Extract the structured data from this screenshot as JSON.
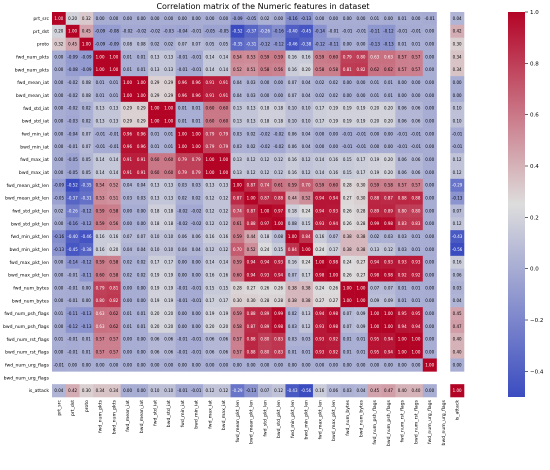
{
  "chart_data": {
    "type": "heatmap",
    "title": "Correlation matrix of the Numeric features in dataset",
    "labels": [
      "prt_src",
      "prt_dst",
      "proto",
      "fwd_num_pkts",
      "bwd_num_pkts",
      "fwd_mean_iat",
      "bwd_mean_iat",
      "fwd_std_iat",
      "bwd_std_iat",
      "fwd_min_iat",
      "bwd_min_iat",
      "fwd_max_iat",
      "bwd_max_iat",
      "fwd_mean_pkt_len",
      "bwd_mean_pkt_len",
      "fwd_std_pkt_len",
      "bwd_std_pkt_len",
      "fwd_min_pkt_len",
      "bwd_min_pkt_len",
      "fwd_max_pkt_len",
      "bwd_max_pkt_len",
      "fwd_num_bytes",
      "bwd_num_bytes",
      "fwd_num_psh_flags",
      "bwd_num_psh_flags",
      "fwd_num_rst_flags",
      "bwd_num_rst_flags",
      "fwd_num_urg_flags",
      "bwd_num_urg_flags",
      "is_attack"
    ],
    "matrix": [
      [
        1.0,
        0.2,
        0.32,
        0.0,
        0.0,
        -0.0,
        -0.0,
        -0.0,
        -0.0,
        -0.0,
        -0.0,
        -0.0,
        -0.0,
        -0.09,
        -0.05,
        0.02,
        0.0,
        -0.16,
        -0.13,
        -0.0,
        -0.0,
        0.0,
        0.0,
        0.01,
        0.0,
        0.01,
        0.0,
        -0.01,
        -0.01,
        0.04
      ],
      [
        0.2,
        1.0,
        0.45,
        -0.09,
        -0.08,
        -0.02,
        -0.02,
        -0.02,
        -0.03,
        -0.04,
        -0.01,
        -0.05,
        -0.05,
        -0.52,
        -0.37,
        -0.26,
        -0.16,
        -0.4,
        -0.45,
        -0.14,
        -0.01,
        -0.01,
        -0.01,
        -0.11,
        -0.12,
        -0.01,
        -0.01,
        0.0,
        0.0,
        0.42
      ],
      [
        0.32,
        0.45,
        1.0,
        -0.09,
        -0.09,
        0.08,
        0.08,
        0.02,
        0.02,
        0.07,
        0.07,
        0.05,
        0.05,
        -0.35,
        -0.31,
        -0.12,
        -0.12,
        -0.46,
        -0.38,
        -0.12,
        -0.11,
        -0.0,
        0.0,
        -0.13,
        -0.13,
        0.01,
        0.01,
        -0.0,
        -0.0,
        0.3
      ],
      [
        0.0,
        -0.09,
        -0.09,
        1.0,
        1.0,
        0.01,
        0.01,
        0.13,
        0.13,
        -0.01,
        -0.01,
        0.14,
        0.14,
        0.54,
        0.53,
        0.59,
        0.59,
        0.16,
        0.16,
        0.59,
        0.6,
        0.79,
        0.8,
        0.63,
        0.63,
        0.57,
        0.57,
        0.0,
        0.0,
        0.34
      ],
      [
        0.0,
        -0.08,
        -0.09,
        1.0,
        1.0,
        0.01,
        0.01,
        0.13,
        0.13,
        -0.01,
        -0.01,
        0.14,
        0.14,
        0.52,
        0.51,
        0.58,
        0.56,
        0.16,
        0.2,
        0.58,
        0.58,
        0.81,
        0.82,
        0.62,
        0.62,
        0.57,
        0.57,
        0.0,
        0.0,
        0.34
      ],
      [
        -0.0,
        -0.02,
        0.08,
        0.01,
        0.01,
        1.0,
        1.0,
        0.29,
        0.29,
        0.96,
        0.96,
        0.91,
        0.91,
        0.04,
        0.03,
        -0.0,
        -0.0,
        0.07,
        0.04,
        0.02,
        0.02,
        0.0,
        0.0,
        0.01,
        0.01,
        -0.0,
        -0.0,
        -0.0,
        -0.0,
        -0.0
      ],
      [
        -0.0,
        -0.02,
        0.08,
        0.01,
        0.01,
        1.0,
        1.0,
        0.29,
        0.29,
        0.96,
        0.96,
        0.91,
        0.91,
        0.04,
        0.03,
        -0.0,
        -0.0,
        0.07,
        0.04,
        0.02,
        0.02,
        0.0,
        0.0,
        0.01,
        0.01,
        -0.0,
        -0.0,
        -0.0,
        -0.0,
        -0.0
      ],
      [
        -0.0,
        -0.02,
        0.02,
        0.13,
        0.13,
        0.29,
        0.29,
        1.0,
        1.0,
        0.01,
        0.01,
        0.6,
        0.6,
        0.13,
        0.13,
        0.18,
        0.18,
        0.1,
        0.1,
        0.17,
        0.19,
        0.19,
        0.19,
        0.2,
        0.2,
        0.06,
        0.06,
        -0.0,
        -0.0,
        0.1
      ],
      [
        -0.0,
        -0.03,
        0.02,
        0.13,
        0.13,
        0.29,
        0.29,
        1.0,
        1.0,
        0.01,
        0.01,
        0.6,
        0.6,
        0.13,
        0.13,
        0.18,
        0.18,
        0.1,
        0.1,
        0.17,
        0.19,
        0.19,
        0.19,
        0.2,
        0.2,
        0.06,
        0.06,
        -0.0,
        -0.0,
        0.1
      ],
      [
        -0.0,
        -0.04,
        0.07,
        -0.01,
        -0.01,
        0.96,
        0.96,
        0.01,
        0.01,
        1.0,
        1.0,
        0.79,
        0.79,
        0.03,
        0.02,
        -0.02,
        -0.02,
        0.06,
        0.04,
        0.0,
        -0.0,
        -0.01,
        -0.01,
        -0.0,
        -0.0,
        -0.01,
        -0.01,
        -0.0,
        -0.0,
        -0.01
      ],
      [
        -0.0,
        -0.01,
        0.07,
        -0.01,
        -0.01,
        0.96,
        0.96,
        0.01,
        0.01,
        1.0,
        1.0,
        0.79,
        0.79,
        0.03,
        0.02,
        -0.02,
        -0.02,
        0.06,
        0.04,
        0.0,
        -0.0,
        -0.01,
        -0.01,
        -0.0,
        -0.0,
        -0.01,
        -0.01,
        -0.0,
        -0.0,
        -0.01
      ],
      [
        -0.0,
        -0.05,
        0.05,
        0.14,
        0.14,
        0.91,
        0.91,
        0.6,
        0.6,
        0.79,
        0.79,
        1.0,
        1.0,
        0.13,
        0.12,
        0.12,
        0.12,
        0.16,
        0.12,
        0.14,
        0.16,
        0.15,
        0.17,
        0.19,
        0.2,
        0.06,
        0.06,
        -0.0,
        -0.0,
        0.12
      ],
      [
        -0.0,
        -0.05,
        0.05,
        0.14,
        0.14,
        0.91,
        0.91,
        0.6,
        0.6,
        0.79,
        0.79,
        1.0,
        1.0,
        0.13,
        0.12,
        0.12,
        0.12,
        0.16,
        0.12,
        0.14,
        0.16,
        0.15,
        0.17,
        0.19,
        0.2,
        0.06,
        0.06,
        -0.0,
        -0.0,
        0.12
      ],
      [
        -0.09,
        -0.52,
        -0.35,
        0.54,
        0.52,
        0.04,
        0.04,
        0.13,
        0.13,
        0.03,
        0.03,
        0.13,
        0.13,
        1.0,
        0.87,
        0.74,
        0.61,
        0.59,
        0.7,
        0.59,
        0.6,
        0.28,
        0.3,
        0.59,
        0.58,
        0.57,
        0.57,
        0.0,
        0.0,
        -0.29
      ],
      [
        -0.05,
        -0.37,
        -0.31,
        0.53,
        0.51,
        0.03,
        0.03,
        0.13,
        0.13,
        0.02,
        0.02,
        0.12,
        0.12,
        0.87,
        1.0,
        0.87,
        0.88,
        0.44,
        0.52,
        0.94,
        0.94,
        0.27,
        0.3,
        0.88,
        0.87,
        0.88,
        0.88,
        0.0,
        0.0,
        -0.13
      ],
      [
        0.02,
        -0.26,
        -0.12,
        0.59,
        0.58,
        -0.0,
        -0.0,
        0.18,
        0.18,
        -0.02,
        -0.02,
        0.12,
        0.12,
        0.74,
        0.87,
        1.0,
        0.97,
        0.18,
        0.24,
        0.94,
        0.93,
        0.26,
        0.28,
        0.89,
        0.89,
        0.8,
        0.8,
        0.0,
        0.0,
        0.07
      ],
      [
        0.0,
        -0.16,
        -0.12,
        0.59,
        0.56,
        -0.0,
        -0.0,
        0.18,
        0.18,
        -0.02,
        -0.02,
        0.12,
        0.12,
        0.61,
        0.88,
        0.97,
        1.0,
        0.08,
        0.15,
        0.93,
        0.94,
        0.26,
        0.28,
        0.99,
        0.98,
        0.83,
        0.83,
        0.0,
        0.0,
        0.12
      ],
      [
        -0.16,
        -0.4,
        -0.46,
        0.16,
        0.16,
        0.07,
        0.07,
        0.1,
        0.1,
        0.06,
        0.06,
        0.16,
        0.16,
        0.59,
        0.44,
        0.18,
        0.08,
        1.0,
        0.84,
        0.16,
        0.07,
        0.38,
        0.38,
        0.02,
        0.03,
        0.03,
        0.01,
        0.0,
        0.0,
        -0.43
      ],
      [
        -0.13,
        -0.45,
        -0.38,
        0.16,
        0.2,
        0.04,
        0.04,
        0.1,
        0.1,
        0.04,
        0.04,
        0.12,
        0.12,
        0.7,
        0.52,
        0.24,
        0.15,
        0.84,
        1.0,
        0.24,
        0.17,
        0.38,
        0.38,
        0.13,
        0.12,
        0.03,
        0.01,
        0.0,
        0.0,
        -0.56
      ],
      [
        -0.0,
        -0.14,
        -0.12,
        0.59,
        0.58,
        0.02,
        0.02,
        0.17,
        0.17,
        0.0,
        0.0,
        0.14,
        0.14,
        0.59,
        0.94,
        0.94,
        0.93,
        0.16,
        0.24,
        1.0,
        0.98,
        0.24,
        0.27,
        0.94,
        0.93,
        0.93,
        0.93,
        0.0,
        0.0,
        0.16
      ],
      [
        -0.0,
        -0.01,
        -0.11,
        0.6,
        0.58,
        0.02,
        0.02,
        0.19,
        0.19,
        -0.0,
        -0.0,
        0.16,
        0.16,
        0.6,
        0.94,
        0.93,
        0.94,
        0.07,
        0.17,
        0.98,
        1.0,
        0.26,
        0.27,
        0.98,
        0.98,
        0.92,
        0.92,
        0.0,
        0.0,
        0.06
      ],
      [
        0.0,
        -0.01,
        -0.0,
        0.79,
        0.81,
        0.0,
        0.0,
        0.19,
        0.19,
        -0.01,
        -0.01,
        0.15,
        0.15,
        0.28,
        0.27,
        0.26,
        0.26,
        0.38,
        0.38,
        0.24,
        0.26,
        1.0,
        1.0,
        0.07,
        0.07,
        0.01,
        0.01,
        0.0,
        0.0,
        0.03
      ],
      [
        0.0,
        -0.01,
        0.0,
        0.8,
        0.82,
        0.0,
        0.0,
        0.19,
        0.19,
        -0.01,
        -0.01,
        0.17,
        0.17,
        0.3,
        0.3,
        0.28,
        0.28,
        0.38,
        0.38,
        0.27,
        0.27,
        1.0,
        1.0,
        0.09,
        0.09,
        0.01,
        0.01,
        0.0,
        0.0,
        0.04
      ],
      [
        0.01,
        -0.11,
        -0.13,
        0.63,
        0.62,
        0.01,
        0.01,
        0.2,
        0.2,
        -0.0,
        -0.0,
        0.19,
        0.19,
        0.59,
        0.88,
        0.89,
        0.99,
        0.02,
        0.13,
        0.94,
        0.98,
        0.07,
        0.09,
        1.0,
        1.0,
        0.95,
        0.95,
        0.0,
        0.0,
        0.45
      ],
      [
        0.0,
        -0.12,
        -0.13,
        0.63,
        0.62,
        0.01,
        0.01,
        0.2,
        0.2,
        -0.0,
        -0.0,
        0.2,
        0.2,
        0.58,
        0.87,
        0.89,
        0.98,
        0.03,
        0.12,
        0.93,
        0.98,
        0.07,
        0.09,
        1.0,
        1.0,
        0.94,
        0.94,
        0.0,
        0.0,
        0.47
      ],
      [
        0.01,
        -0.01,
        0.01,
        0.57,
        0.57,
        -0.0,
        -0.0,
        0.06,
        0.06,
        -0.01,
        -0.01,
        0.06,
        0.06,
        0.57,
        0.88,
        0.8,
        0.83,
        0.03,
        0.03,
        0.93,
        0.92,
        0.01,
        0.01,
        0.95,
        0.94,
        1.0,
        1.0,
        0.0,
        0.0,
        0.4
      ],
      [
        0.0,
        -0.01,
        0.01,
        0.57,
        0.57,
        -0.0,
        -0.0,
        0.06,
        0.06,
        -0.01,
        -0.01,
        0.06,
        0.06,
        0.57,
        0.88,
        0.8,
        0.83,
        0.01,
        0.01,
        0.93,
        0.92,
        0.01,
        0.01,
        0.95,
        0.94,
        1.0,
        1.0,
        0.0,
        0.0,
        0.4
      ],
      [
        -0.01,
        0.0,
        -0.0,
        0.0,
        0.0,
        -0.0,
        -0.0,
        -0.0,
        -0.0,
        -0.0,
        -0.0,
        -0.0,
        -0.0,
        0.0,
        0.0,
        0.0,
        0.0,
        0.0,
        0.0,
        0.0,
        0.0,
        0.0,
        0.0,
        0.0,
        0.0,
        0.0,
        0.0,
        1.0,
        1.0,
        -0.0
      ],
      [
        -0.01,
        0.0,
        -0.0,
        0.0,
        0.0,
        -0.0,
        -0.0,
        -0.0,
        -0.0,
        -0.0,
        -0.0,
        -0.0,
        -0.0,
        0.0,
        0.0,
        0.0,
        0.0,
        0.0,
        0.0,
        0.0,
        0.0,
        0.0,
        0.0,
        0.0,
        0.0,
        0.0,
        0.0,
        1.0,
        1.0,
        -0.0
      ],
      [
        0.04,
        0.42,
        0.3,
        0.34,
        0.34,
        -0.0,
        -0.0,
        0.1,
        0.1,
        -0.01,
        -0.01,
        0.12,
        0.12,
        -0.29,
        -0.13,
        0.07,
        0.12,
        -0.43,
        -0.56,
        0.16,
        0.06,
        0.03,
        0.04,
        0.45,
        0.47,
        0.4,
        0.4,
        -0.0,
        -0.0,
        1.0
      ]
    ],
    "blank_rows": [
      "bwd_num_urg_flags"
    ],
    "vmin": -0.5,
    "vmax": 1.0,
    "colorbar_ticks": [
      1.0,
      0.8,
      0.6,
      0.4,
      0.2,
      0.0,
      -0.2,
      -0.4
    ],
    "colormap": "coolwarm",
    "colors": {
      "low": "#3b4cc0",
      "mid": "#dddddd",
      "high": "#b40426"
    }
  }
}
